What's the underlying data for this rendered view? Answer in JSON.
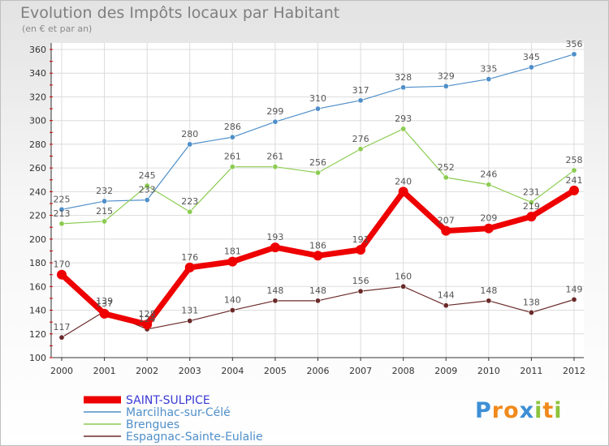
{
  "chart_data": {
    "type": "line",
    "title": "Evolution des Impôts locaux par Habitant",
    "subtitle": "(en € et par an)",
    "x": [
      2000,
      2001,
      2002,
      2003,
      2004,
      2005,
      2006,
      2007,
      2008,
      2009,
      2010,
      2011,
      2012
    ],
    "x_ticks": [
      "2000",
      "2001",
      "2002",
      "2003",
      "2004",
      "2005",
      "2006",
      "2007",
      "2008",
      "2009",
      "2010",
      "2011",
      "2012"
    ],
    "ylim": [
      100,
      360
    ],
    "y_ticks": [
      100,
      120,
      140,
      160,
      180,
      200,
      220,
      240,
      260,
      280,
      300,
      320,
      340,
      360
    ],
    "y_tick_labels": [
      "100",
      "120",
      "140",
      "160",
      "180",
      "200",
      "220",
      "240",
      "260",
      "280",
      "300",
      "320",
      "340",
      "360"
    ],
    "grid": true,
    "legend_position": "bottom-left",
    "series": [
      {
        "name": "Marcilhac-sur-Célé",
        "color": "#4f8fc9",
        "values": [
          225,
          232,
          233,
          280,
          286,
          299,
          310,
          317,
          328,
          329,
          335,
          345,
          356
        ],
        "labels": [
          "225",
          "232",
          "233",
          "280",
          "286",
          "299",
          "310",
          "317",
          "328",
          "329",
          "335",
          "345",
          "356"
        ]
      },
      {
        "name": "Brengues",
        "color": "#8ccc52",
        "values": [
          213,
          215,
          245,
          223,
          261,
          261,
          256,
          276,
          293,
          252,
          246,
          231,
          258
        ],
        "labels": [
          "213",
          "215",
          "245",
          "223",
          "261",
          "261",
          "256",
          "276",
          "293",
          "252",
          "246",
          "231",
          "258"
        ]
      },
      {
        "name": "Espagnac-Sainte-Eulalie",
        "color": "#6b2a2a",
        "values": [
          117,
          139,
          124,
          131,
          140,
          148,
          148,
          156,
          160,
          144,
          148,
          138,
          149
        ],
        "labels": [
          "117",
          "139",
          "124",
          "131",
          "140",
          "148",
          "148",
          "156",
          "160",
          "144",
          "148",
          "138",
          "149"
        ]
      },
      {
        "name": "SAINT-SULPICE",
        "color": "#ee0000",
        "values": [
          170,
          137,
          128,
          176,
          181,
          193,
          186,
          191,
          240,
          207,
          209,
          219,
          241
        ],
        "labels": [
          "170",
          "137",
          "128",
          "176",
          "181",
          "193",
          "186",
          "191",
          "240",
          "207",
          "209",
          "219",
          "241"
        ]
      }
    ],
    "legend": [
      {
        "name": "SAINT-SULPICE",
        "color": "#ee0000",
        "text_color": "#3a3ad6",
        "thick": true
      },
      {
        "name": "Marcilhac-sur-Célé",
        "color": "#4f8fc9",
        "text_color": "#4f8fc9",
        "thick": false
      },
      {
        "name": "Brengues",
        "color": "#8ccc52",
        "text_color": "#4f8fc9",
        "thick": false
      },
      {
        "name": "Espagnac-Sainte-Eulalie",
        "color": "#6b2a2a",
        "text_color": "#4f8fc9",
        "thick": false
      }
    ]
  },
  "logo": {
    "letters": [
      "P",
      "r",
      "o",
      "x",
      "i",
      "t",
      "i"
    ],
    "colors": [
      "#3d8fd6",
      "#f08a1c",
      "#f08a1c",
      "#3d8fd6",
      "#8cc43c",
      "#f08a1c",
      "#8cc43c"
    ]
  }
}
